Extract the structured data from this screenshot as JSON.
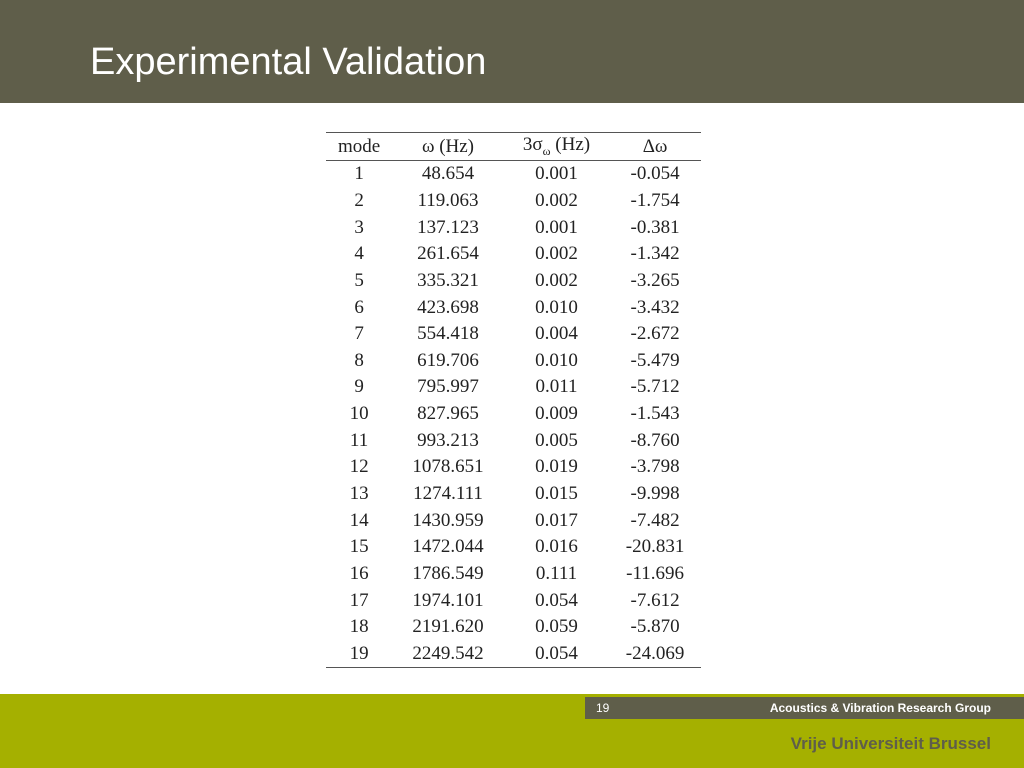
{
  "header": {
    "title": "Experimental Validation"
  },
  "table": {
    "columns": [
      {
        "text": "mode"
      },
      {
        "base": "ω",
        "unit": "(Hz)"
      },
      {
        "base": "3σ",
        "sub": "ω",
        "unit": "(Hz)"
      },
      {
        "base": "Δω"
      }
    ],
    "rows": [
      [
        "1",
        "48.654",
        "0.001",
        "-0.054"
      ],
      [
        "2",
        "119.063",
        "0.002",
        "-1.754"
      ],
      [
        "3",
        "137.123",
        "0.001",
        "-0.381"
      ],
      [
        "4",
        "261.654",
        "0.002",
        "-1.342"
      ],
      [
        "5",
        "335.321",
        "0.002",
        "-3.265"
      ],
      [
        "6",
        "423.698",
        "0.010",
        "-3.432"
      ],
      [
        "7",
        "554.418",
        "0.004",
        "-2.672"
      ],
      [
        "8",
        "619.706",
        "0.010",
        "-5.479"
      ],
      [
        "9",
        "795.997",
        "0.011",
        "-5.712"
      ],
      [
        "10",
        "827.965",
        "0.009",
        "-1.543"
      ],
      [
        "11",
        "993.213",
        "0.005",
        "-8.760"
      ],
      [
        "12",
        "1078.651",
        "0.019",
        "-3.798"
      ],
      [
        "13",
        "1274.111",
        "0.015",
        "-9.998"
      ],
      [
        "14",
        "1430.959",
        "0.017",
        "-7.482"
      ],
      [
        "15",
        "1472.044",
        "0.016",
        "-20.831"
      ],
      [
        "16",
        "1786.549",
        "0.111",
        "-11.696"
      ],
      [
        "17",
        "1974.101",
        "0.054",
        "-7.612"
      ],
      [
        "18",
        "2191.620",
        "0.059",
        "-5.870"
      ],
      [
        "19",
        "2249.542",
        "0.054",
        "-24.069"
      ]
    ]
  },
  "footer": {
    "page": "19",
    "group": "Acoustics & Vibration Research Group",
    "university": "Vrije Universiteit Brussel"
  }
}
